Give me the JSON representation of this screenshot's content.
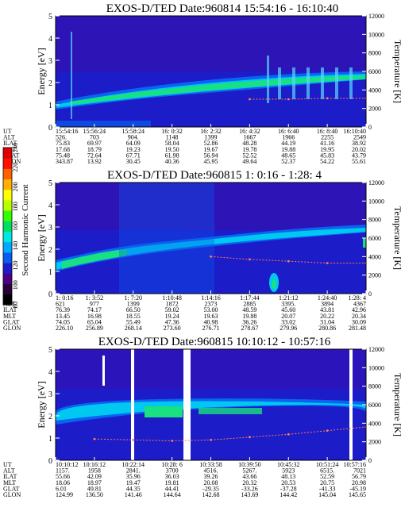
{
  "colorbar": {
    "label": "Second Harmonic Current",
    "ticks": [
      "240",
      "220",
      "200",
      "180",
      "160",
      "140",
      "120",
      "100",
      "80"
    ],
    "colors": [
      "#000000",
      "#2a0038",
      "#4b0086",
      "#1c1cc8",
      "#0a5cf0",
      "#00aaff",
      "#00e8e0",
      "#00e060",
      "#33ff00",
      "#b8ff00",
      "#ffff00",
      "#ffb000",
      "#ff6000",
      "#ff1000",
      "#e00000"
    ]
  },
  "panels": [
    {
      "title": "EXOS-D/TED  Date:960814  15:54:16 - 16:10:40",
      "ylabel": "Energy [eV]",
      "y2label": "Temperature [K]",
      "yticks": [
        "0",
        "1",
        "2",
        "3",
        "4",
        "5"
      ],
      "y2ticks": [
        "0",
        "2000",
        "4000",
        "6000",
        "8000",
        "10000",
        "12000"
      ],
      "table": {
        "rows": [
          {
            "label": "UT",
            "values": [
              "15:54:16",
              "15:56:24",
              "15:58:24",
              "16: 0:32",
              "16: 2:32",
              "16: 4:32",
              "16: 6:40",
              "16: 8:40",
              "16:10:40"
            ]
          },
          {
            "label": "ALT",
            "values": [
              "526.",
              "703",
              "904.",
              "1148",
              "1399",
              "1667",
              "1966",
              "2255",
              "2549"
            ]
          },
          {
            "label": "ILAT",
            "values": [
              "75.83",
              "69.97",
              "64.09",
              "58.04",
              "52.86",
              "48.28",
              "44.19",
              "41.16",
              "38.92"
            ]
          },
          {
            "label": "MLT",
            "values": [
              "17.68",
              "18.79",
              "19.23",
              "19.50",
              "19.67",
              "19.78",
              "19.88",
              "19.95",
              "20.02"
            ]
          },
          {
            "label": "GLAT",
            "values": [
              "75.48",
              "72.64",
              "67.71",
              "61.98",
              "56.94",
              "52.52",
              "48.65",
              "45.83",
              "43.79"
            ]
          },
          {
            "label": "GLON",
            "values": [
              "343.87",
              "13.92",
              "30.45",
              "40.36",
              "45.95",
              "49.64",
              "52.37",
              "54.22",
              "55.61"
            ]
          }
        ]
      }
    },
    {
      "title": "EXOS-D/TED   Date:960815  1: 0:16 - 1:28: 4",
      "ylabel": "Energy [eV]",
      "y2label": "Temperature [K]",
      "yticks": [
        "0",
        "1",
        "2",
        "3",
        "4",
        "5"
      ],
      "y2ticks": [
        "0",
        "2000",
        "4000",
        "6000",
        "8000",
        "10000",
        "12000"
      ],
      "table": {
        "rows": [
          {
            "label": "UT",
            "values": [
              "1: 0:16",
              "1: 3:52",
              "1: 7:20",
              "1:10:48",
              "1:14:16",
              "1:17:44",
              "1:21:12",
              "1:24:40",
              "1:28: 4"
            ]
          },
          {
            "label": "ALT",
            "values": [
              "621",
              "977",
              "1399",
              "1872",
              "2373",
              "2885",
              "3395.",
              "3894",
              "4367"
            ]
          },
          {
            "label": "ILAT",
            "values": [
              "76.39",
              "74.17",
              "66.50",
              "59.02",
              "53.00",
              "48.59",
              "45.60",
              "43.81",
              "42.96"
            ]
          },
          {
            "label": "MLT",
            "values": [
              "13.45",
              "16.98",
              "18.55",
              "19.24",
              "19.63",
              "19.88",
              "20.07",
              "20.22",
              "20.34"
            ]
          },
          {
            "label": "GLAT",
            "values": [
              "74.05",
              "65.04",
              "55.49",
              "47.36",
              "40.98",
              "36.26",
              "33.02",
              "31.04",
              "30.09"
            ]
          },
          {
            "label": "GLON",
            "values": [
              "226.10",
              "256.89",
              "268.14",
              "273.60",
              "276.71",
              "278.67",
              "279.96",
              "280.86",
              "281.48"
            ]
          }
        ]
      }
    },
    {
      "title": "EXOS-D/TED   Date:960815  10:10:12 - 10:57:16",
      "ylabel": "Energy [eV]",
      "y2label": "Temperature [K]",
      "yticks": [
        "0",
        "1",
        "2",
        "3",
        "4",
        "5"
      ],
      "y2ticks": [
        "0",
        "2000",
        "4000",
        "6000",
        "8000",
        "10000",
        "12000"
      ],
      "table": {
        "rows": [
          {
            "label": "UT",
            "values": [
              "10:10:12",
              "10:16:12",
              "10:22:14",
              "10:28: 6",
              "10:33:58",
              "10:39:50",
              "10:45:32",
              "10:51:24",
              "10:57:16"
            ]
          },
          {
            "label": "ALT",
            "values": [
              "1157.",
              "1958",
              "2841.",
              "3700",
              "4516.",
              "5267.",
              "5923",
              "6515.",
              "7021"
            ]
          },
          {
            "label": "ILAT",
            "values": [
              "55.66",
              "42.09",
              "35.96",
              "36.03",
              "39.26",
              "43.66",
              "48.13",
              "52.59",
              "56.79"
            ]
          },
          {
            "label": "MLT",
            "values": [
              "18.06",
              "18.97",
              "19.47",
              "19.81",
              "20.08",
              "20.32",
              "20.53",
              "20.75",
              "20.98"
            ]
          },
          {
            "label": "GLAT",
            "values": [
              "6.01",
              "49.81",
              "44.35",
              "44.41",
              "-29.35",
              "-33.26",
              "-37.28",
              "-41.33",
              "-45.19"
            ]
          },
          {
            "label": "GLON",
            "values": [
              "124.99",
              "136.50",
              "141.46",
              "144.64",
              "142.68",
              "143.69",
              "144.42",
              "145.04",
              "145.65"
            ]
          }
        ]
      }
    }
  ],
  "chart_data": [
    {
      "type": "heatmap",
      "title": "EXOS-D/TED  Date:960814  15:54:16 - 16:10:40",
      "ylabel": "Energy [eV]",
      "y2label": "Temperature [K]",
      "ylim": [
        0,
        5
      ],
      "y2lim": [
        0,
        12000
      ],
      "x": [
        "15:54:16",
        "15:56:24",
        "15:58:24",
        "16: 0:32",
        "16: 2:32",
        "16: 4:32",
        "16: 6:40",
        "16: 8:40",
        "16:10:40"
      ],
      "peak_energy": [
        1.1,
        1.2,
        1.4,
        1.5,
        1.7,
        1.8,
        1.9,
        2.0,
        2.1
      ],
      "temperature": [
        null,
        null,
        null,
        null,
        null,
        3000,
        3000,
        3100,
        3100
      ]
    },
    {
      "type": "heatmap",
      "title": "EXOS-D/TED   Date:960815  1: 0:16 - 1:28: 4",
      "ylabel": "Energy [eV]",
      "y2label": "Temperature [K]",
      "ylim": [
        0,
        5
      ],
      "y2lim": [
        0,
        12000
      ],
      "x": [
        "1: 0:16",
        "1: 3:52",
        "1: 7:20",
        "1:10:48",
        "1:14:16",
        "1:17:44",
        "1:21:12",
        "1:24:40",
        "1:28: 4"
      ],
      "peak_energy": [
        1.2,
        1.5,
        1.8,
        2.0,
        2.1,
        2.3,
        2.4,
        2.5,
        2.6
      ],
      "temperature": [
        null,
        null,
        null,
        null,
        4000,
        3700,
        3500,
        3300,
        3300
      ]
    },
    {
      "type": "heatmap",
      "title": "EXOS-D/TED   Date:960815  10:10:12 - 10:57:16",
      "ylabel": "Energy [eV]",
      "y2label": "Temperature [K]",
      "ylim": [
        0,
        5
      ],
      "y2lim": [
        0,
        12000
      ],
      "x": [
        "10:10:12",
        "10:16:12",
        "10:22:14",
        "10:28: 6",
        "10:33:58",
        "10:39:50",
        "10:45:32",
        "10:51:24",
        "10:57:16"
      ],
      "peak_energy": [
        1.9,
        2.0,
        2.1,
        2.1,
        2.1,
        2.0,
        1.9,
        1.8,
        1.8
      ],
      "temperature": [
        null,
        2300,
        2200,
        2100,
        2200,
        2500,
        2800,
        3200,
        3600
      ]
    }
  ]
}
